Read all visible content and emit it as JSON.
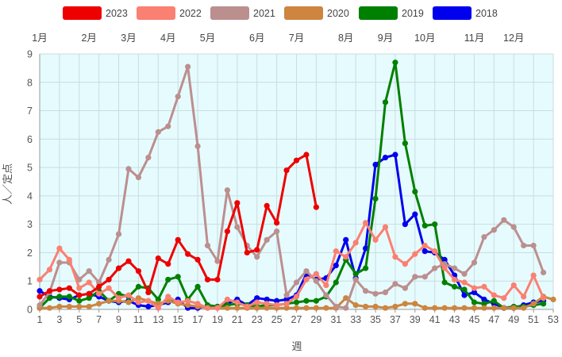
{
  "chart_data": {
    "type": "line",
    "xlabel": "週",
    "ylabel": "人／定点",
    "xlim": [
      1,
      53
    ],
    "ylim": [
      0,
      9
    ],
    "yticks": [
      0,
      1,
      2,
      3,
      4,
      5,
      6,
      7,
      8,
      9
    ],
    "xticks": [
      1,
      3,
      5,
      7,
      9,
      11,
      13,
      15,
      17,
      19,
      21,
      23,
      25,
      27,
      29,
      31,
      33,
      35,
      37,
      39,
      41,
      43,
      45,
      47,
      49,
      51,
      53
    ],
    "grid": true,
    "legend_position": "top",
    "month_labels": [
      {
        "label": "1月",
        "week": 1
      },
      {
        "label": "2月",
        "week": 6
      },
      {
        "label": "3月",
        "week": 10
      },
      {
        "label": "4月",
        "week": 14
      },
      {
        "label": "5月",
        "week": 18
      },
      {
        "label": "6月",
        "week": 23
      },
      {
        "label": "7月",
        "week": 27
      },
      {
        "label": "8月",
        "week": 32
      },
      {
        "label": "9月",
        "week": 36
      },
      {
        "label": "10月",
        "week": 40
      },
      {
        "label": "11月",
        "week": 45
      },
      {
        "label": "12月",
        "week": 49
      }
    ],
    "series": [
      {
        "name": "2018",
        "color": "#0000ee",
        "values": [
          0.65,
          0.45,
          0.4,
          0.35,
          0.5,
          0.55,
          0.45,
          0.3,
          0.25,
          0.3,
          0.15,
          0.1,
          0.15,
          0.25,
          0.35,
          0.05,
          0.05,
          0.1,
          0.1,
          0.2,
          0.35,
          0.15,
          0.4,
          0.35,
          0.3,
          0.35,
          0.5,
          1.25,
          1.05,
          1.1,
          1.55,
          2.45,
          1.1,
          2.15,
          5.1,
          5.35,
          5.45,
          3.0,
          3.35,
          2.05,
          2.0,
          1.75,
          1.2,
          0.5,
          0.6,
          0.35,
          0.2,
          0.05,
          0.05,
          0.15,
          0.25,
          0.3
        ]
      },
      {
        "name": "2019",
        "color": "#008000",
        "values": [
          0.05,
          0.4,
          0.45,
          0.45,
          0.3,
          0.4,
          0.65,
          0.3,
          0.55,
          0.45,
          0.8,
          0.75,
          0.35,
          1.05,
          1.15,
          0.35,
          0.8,
          0.15,
          0.1,
          0.15,
          0.2,
          0.15,
          0.1,
          0.15,
          0.15,
          0.2,
          0.25,
          0.3,
          0.3,
          0.45,
          0.95,
          1.75,
          1.25,
          1.45,
          3.9,
          7.3,
          8.7,
          5.85,
          4.15,
          2.95,
          3.0,
          0.95,
          0.8,
          0.7,
          0.25,
          0.2,
          0.3,
          0.05,
          0.1,
          0.1,
          0.15,
          0.2
        ]
      },
      {
        "name": "2020",
        "color": "#cd853f",
        "values": [
          0.05,
          0.05,
          0.1,
          0.1,
          0.1,
          0.1,
          0.2,
          0.3,
          0.3,
          0.25,
          0.4,
          0.3,
          0.2,
          0.3,
          0.2,
          0.15,
          0.1,
          0.05,
          0.05,
          0.05,
          0.05,
          0.05,
          0.05,
          0.05,
          0.05,
          0.05,
          0.05,
          0.05,
          0.05,
          0.05,
          0.05,
          0.4,
          0.15,
          0.1,
          0.1,
          0.05,
          0.1,
          0.2,
          0.2,
          0.05,
          0.05,
          0.05,
          0.05,
          0.05,
          0.05,
          0.05,
          0.05,
          0.05,
          0.05,
          0.05,
          0.2,
          0.45,
          0.35
        ]
      },
      {
        "name": "2021",
        "color": "#bc8f8f",
        "values": [
          0.15,
          0.6,
          1.65,
          1.65,
          1.05,
          1.35,
          0.95,
          1.75,
          2.65,
          4.95,
          4.65,
          5.35,
          6.25,
          6.45,
          7.5,
          8.55,
          5.75,
          2.25,
          1.7,
          4.2,
          2.9,
          2.25,
          1.85,
          2.45,
          2.75,
          0.5,
          0.95,
          1.35,
          1.0,
          0.5,
          0.1,
          0.05,
          1.05,
          0.65,
          0.55,
          0.6,
          0.9,
          0.75,
          1.15,
          1.15,
          1.45,
          1.6,
          1.45,
          1.25,
          1.65,
          2.55,
          2.8,
          3.15,
          2.9,
          2.25,
          2.25,
          1.3
        ]
      },
      {
        "name": "2022",
        "color": "#fa8072",
        "values": [
          1.05,
          1.4,
          2.15,
          1.75,
          0.75,
          0.95,
          0.55,
          0.75,
          0.4,
          0.5,
          0.25,
          0.3,
          0.05,
          0.45,
          0.25,
          0.3,
          0.2,
          0.05,
          0.05,
          0.35,
          0.25,
          0.1,
          0.25,
          0.2,
          0.15,
          0.2,
          0.45,
          1.05,
          1.25,
          0.85,
          2.05,
          1.85,
          2.35,
          3.05,
          2.45,
          2.9,
          1.85,
          1.6,
          1.95,
          2.25,
          2.05,
          1.45,
          1.05,
          0.95,
          0.75,
          0.8,
          0.5,
          0.4,
          0.85,
          0.45,
          1.2,
          0.4
        ]
      },
      {
        "name": "2023",
        "color": "#ee0000",
        "values": [
          0.45,
          0.65,
          0.7,
          0.75,
          0.5,
          0.55,
          0.8,
          1.05,
          1.45,
          1.7,
          1.35,
          0.6,
          1.8,
          1.6,
          2.45,
          1.95,
          1.75,
          1.05,
          1.05,
          2.75,
          3.75,
          2.0,
          2.1,
          3.65,
          3.05,
          4.9,
          5.25,
          5.45,
          3.6
        ]
      }
    ]
  }
}
